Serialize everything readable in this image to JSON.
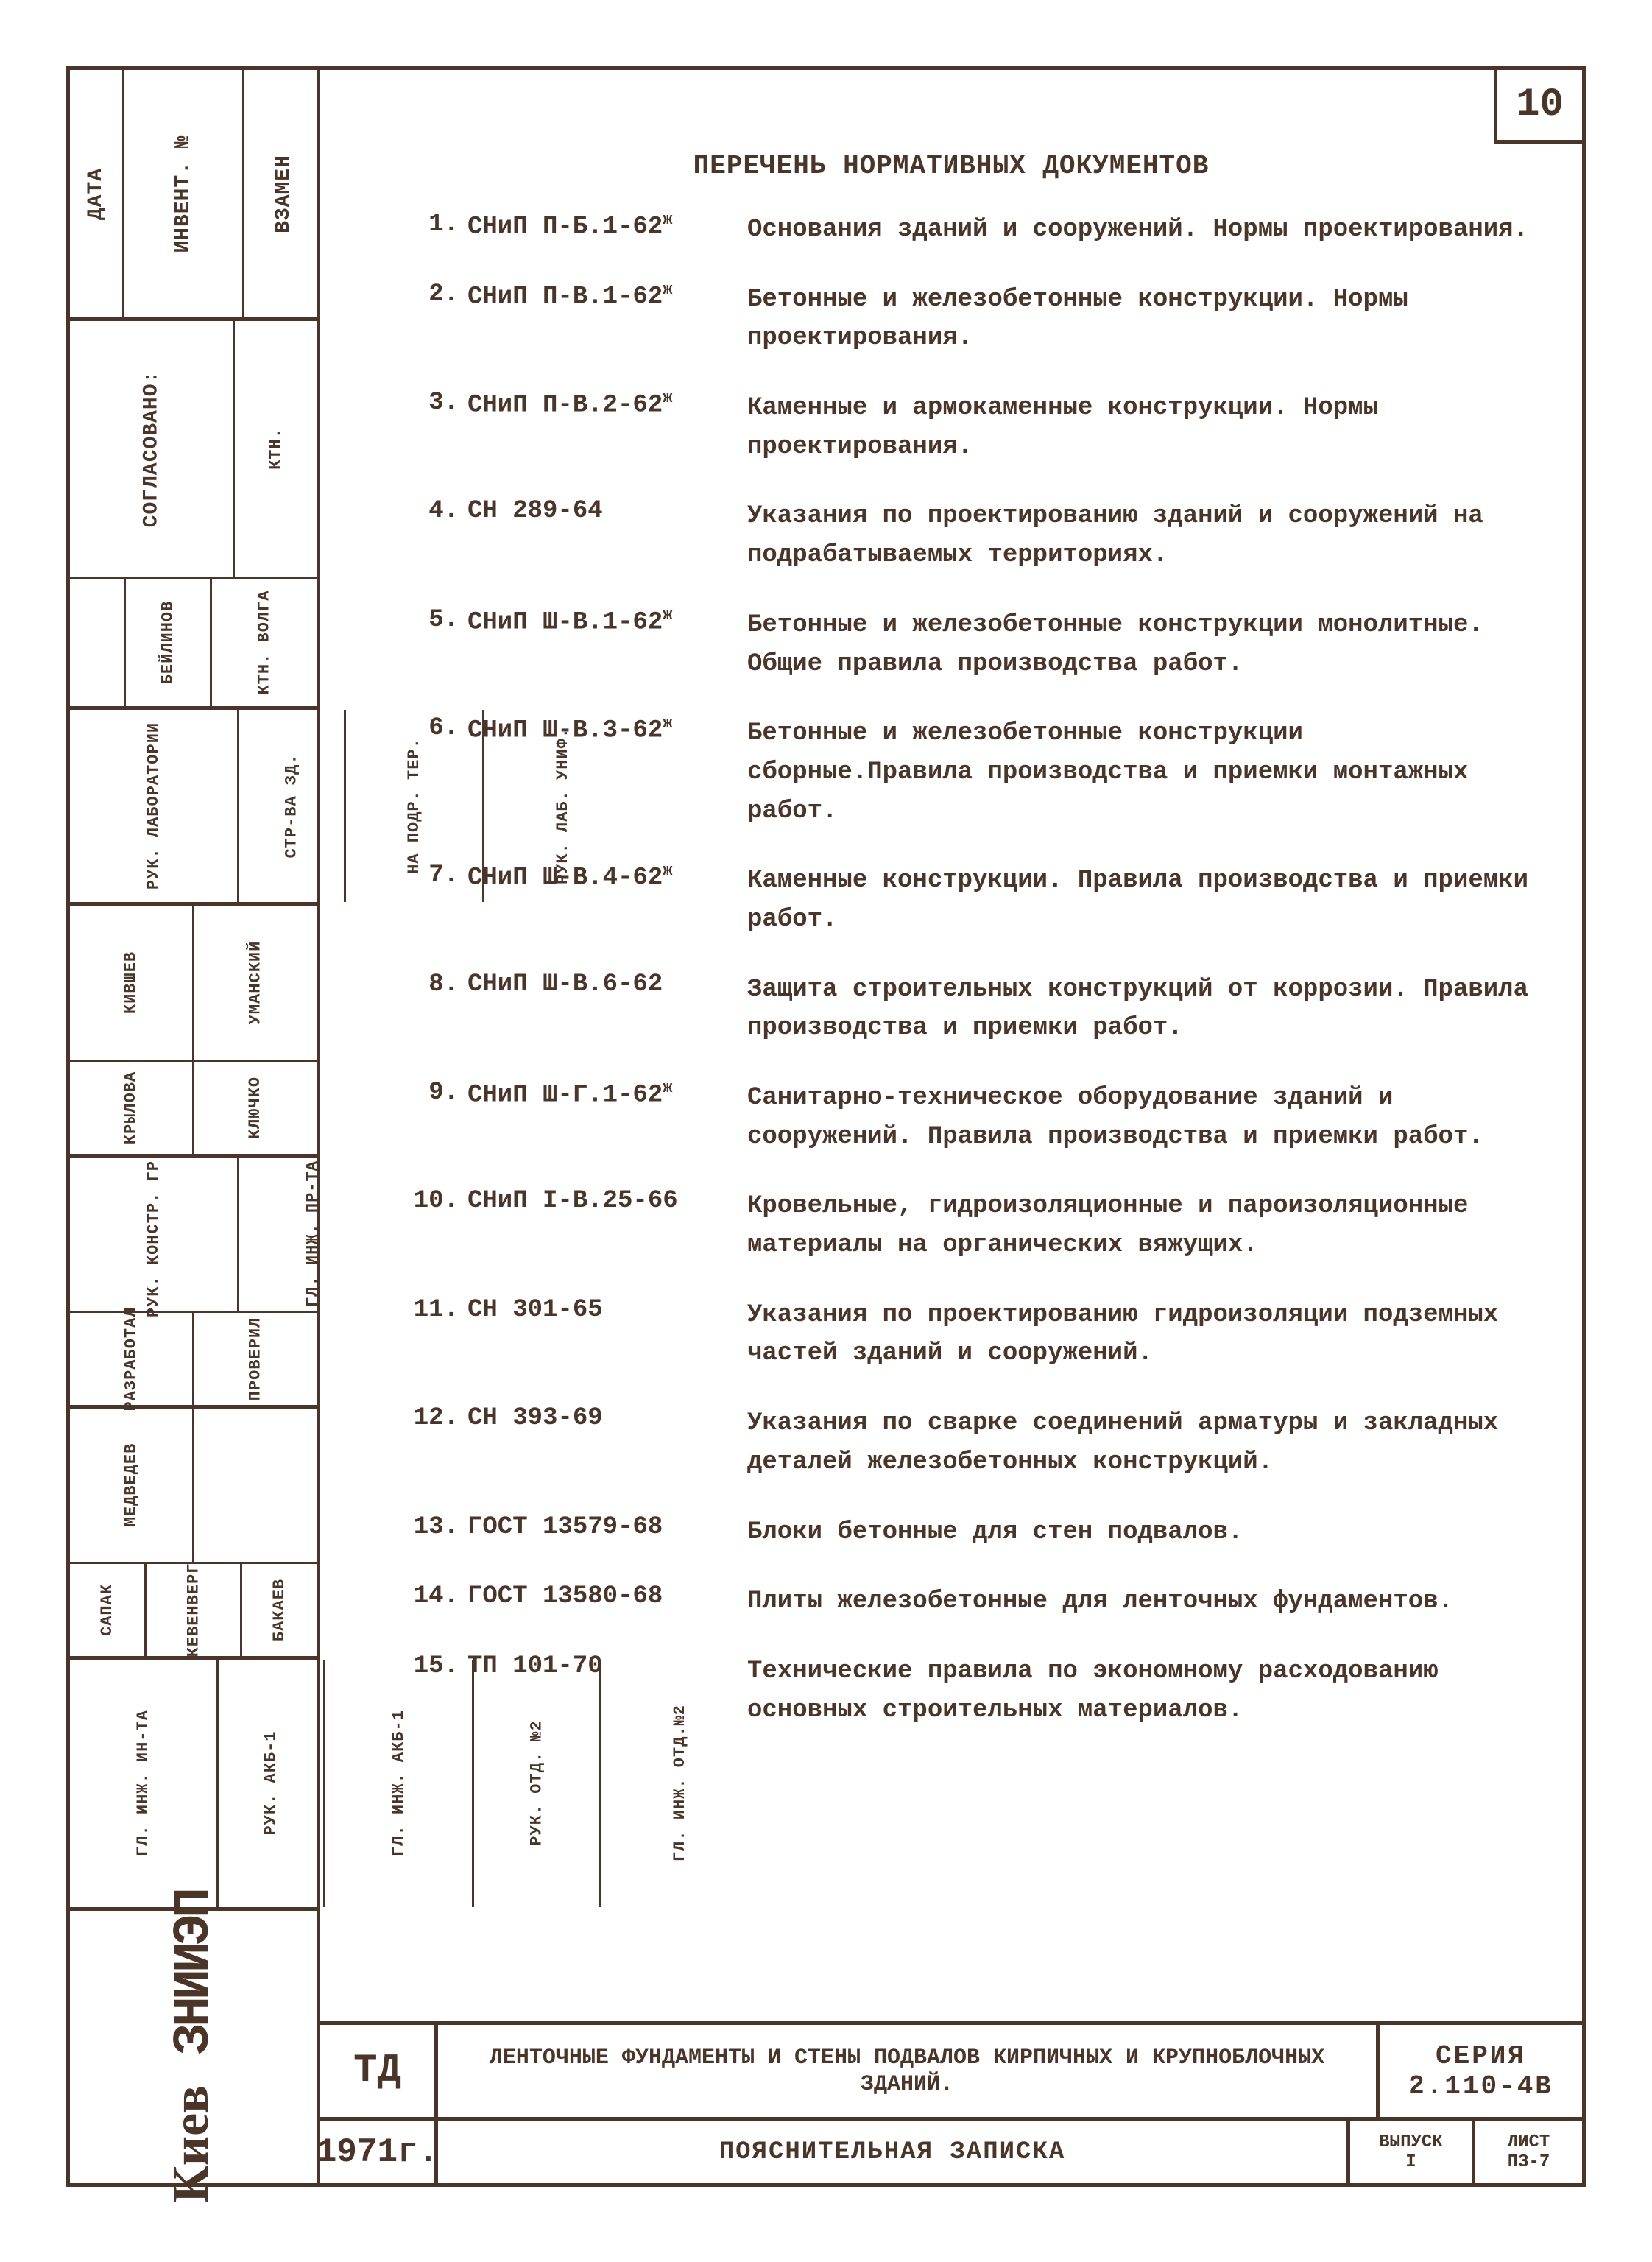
{
  "page_number": "10",
  "colors": {
    "ink": "#4a3528",
    "paper": "#ffffff"
  },
  "left_column": {
    "groups": [
      {
        "cells": [
          "ДАТА",
          "ИНВЕНТ. №",
          "ВЗАМЕН"
        ]
      },
      {
        "heading": "СОГЛАСОВАНО:",
        "cells_top": [
          "",
          "КТН."
        ],
        "cells_bot": [
          "",
          "БЕЙЛИНОВ",
          "КТН. ВОЛГА"
        ]
      },
      {
        "cells_top": [
          "РУК. ЛАБОРАТОРИИ",
          "СТР-ВА ЗД.",
          "НА ПОДР. ТЕР.",
          "РУК. ЛАБ. УНИФ."
        ]
      },
      {
        "cells_top": [
          "КИВШЕВ",
          "УМАНСКИЙ"
        ],
        "cells_bot": [
          "КРЫЛОВА",
          "КЛЮЧКО"
        ]
      },
      {
        "cells_top": [
          "РУК. КОНСТР. ГР.",
          "ГЛ. ИНЖ. ПР-ТА"
        ],
        "cells_bot": [
          "РАЗРАБОТАЛ",
          "ПРОВЕРИЛ"
        ]
      },
      {
        "cells_top": [
          "МЕДВЕДЕВ"
        ],
        "cells_bot": [
          "САПАК",
          "КЕВЕНВЕРГ",
          "БАКАЕВ"
        ]
      },
      {
        "cells": [
          "ГЛ. ИНЖ. ИН-ТА",
          "РУК. АКБ-1",
          "ГЛ. ИНЖ. АКБ-1",
          "РУК. ОТД. №2",
          "ГЛ. ИНЖ. ОТД.№2"
        ]
      }
    ],
    "logo": "Киев ЗНИИЭП"
  },
  "document": {
    "title": "ПЕРЕЧЕНЬ НОРМАТИВНЫХ ДОКУМЕНТОВ",
    "items": [
      {
        "n": "1.",
        "code": "СНиП П-Б.1-62",
        "sup": "ж",
        "desc": "Основания зданий и сооружений. Нормы проектирования."
      },
      {
        "n": "2.",
        "code": "СНиП П-В.1-62",
        "sup": "ж",
        "desc": "Бетонные и железобетонные конструкции. Нормы проектирования."
      },
      {
        "n": "3.",
        "code": "СНиП П-В.2-62",
        "sup": "ж",
        "desc": "Каменные и армокаменные конструкции. Нормы проектирования."
      },
      {
        "n": "4.",
        "code": "СН 289-64",
        "sup": "",
        "desc": "Указания по проектированию зданий и сооружений на подрабатываемых территориях."
      },
      {
        "n": "5.",
        "code": "СНиП Ш-В.1-62",
        "sup": "ж",
        "desc": "Бетонные и железобетонные конструкции монолитные. Общие правила производства работ."
      },
      {
        "n": "6.",
        "code": "СНиП Ш-В.3-62",
        "sup": "ж",
        "desc": "Бетонные и железобетонные конструкции сборные.Правила производства и приемки монтажных работ."
      },
      {
        "n": "7.",
        "code": "СНиП Ш-В.4-62",
        "sup": "ж",
        "desc": "Каменные конструкции. Правила производства и приемки работ."
      },
      {
        "n": "8.",
        "code": "СНиП Ш-В.6-62",
        "sup": "",
        "desc": "Защита строительных конструкций от коррозии. Правила производства и приемки работ."
      },
      {
        "n": "9.",
        "code": "СНиП Ш-Г.1-62",
        "sup": "ж",
        "desc": "Санитарно-техническое оборудование зданий и сооружений. Правила производства и приемки работ."
      },
      {
        "n": "10.",
        "code": "СНиП I-В.25-66",
        "sup": "",
        "desc": "Кровельные, гидроизоляционные и пароизоляционные материалы на органических вяжущих."
      },
      {
        "n": "11.",
        "code": "СН 301-65",
        "sup": "",
        "desc": "Указания по проектированию гидроизоляции подземных частей зданий и сооружений."
      },
      {
        "n": "12.",
        "code": "СН 393-69",
        "sup": "",
        "desc": "Указания по сварке соединений арматуры и закладных деталей железобетонных конструкций."
      },
      {
        "n": "13.",
        "code": "ГОСТ 13579-68",
        "sup": "",
        "desc": "Блоки бетонные для стен подвалов."
      },
      {
        "n": "14.",
        "code": "ГОСТ 13580-68",
        "sup": "",
        "desc": "Плиты железобетонные для ленточных фундаментов."
      },
      {
        "n": "15.",
        "code": "ТП 101-70",
        "sup": "",
        "desc": "Технические правила по экономному расходованию основных строительных материалов."
      }
    ]
  },
  "title_block": {
    "td": "ТД",
    "project_title": "ЛЕНТОЧНЫЕ ФУНДАМЕНТЫ И СТЕНЫ ПОДВАЛОВ КИРПИЧНЫХ И КРУПНОБЛОЧНЫХ ЗДАНИЙ.",
    "series_label": "СЕРИЯ",
    "series_num": "2.110-4В",
    "year": "1971г.",
    "subtitle": "ПОЯСНИТЕЛЬНАЯ ЗАПИСКА",
    "issue_label": "ВЫПУСК",
    "issue_num": "I",
    "sheet_label": "ЛИСТ",
    "sheet_num": "ПЗ-7"
  }
}
